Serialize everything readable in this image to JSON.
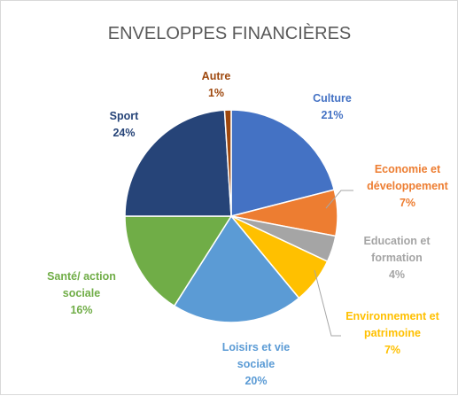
{
  "chart_data": {
    "type": "pie",
    "title": "ENVELOPPES FINANCIÈRES",
    "slices": [
      {
        "category": "Culture",
        "value": 21,
        "value_label": "21%",
        "color": "#4472C4",
        "label_lines": [
          "Culture"
        ]
      },
      {
        "category": "Economie et développement",
        "value": 7,
        "value_label": "7%",
        "color": "#ED7D31",
        "label_lines": [
          "Economie et",
          "développement"
        ]
      },
      {
        "category": "Education et formation",
        "value": 4,
        "value_label": "4%",
        "color": "#A5A5A5",
        "label_lines": [
          "Education et",
          "formation"
        ]
      },
      {
        "category": "Environnement et patrimoine",
        "value": 7,
        "value_label": "7%",
        "color": "#FFC000",
        "label_lines": [
          "Environnement et",
          "patrimoine"
        ]
      },
      {
        "category": "Loisirs et vie sociale",
        "value": 20,
        "value_label": "20%",
        "color": "#5B9BD5",
        "label_lines": [
          "Loisirs et vie",
          "sociale"
        ]
      },
      {
        "category": "Santé/ action sociale",
        "value": 16,
        "value_label": "16%",
        "color": "#70AD47",
        "label_lines": [
          "Santé/ action",
          "sociale"
        ]
      },
      {
        "category": "Sport",
        "value": 24,
        "value_label": "24%",
        "color": "#264478",
        "label_lines": [
          "Sport"
        ]
      },
      {
        "category": "Autre",
        "value": 1,
        "value_label": "1%",
        "color": "#9E480E",
        "label_lines": [
          "Autre"
        ]
      }
    ],
    "start_angle_deg": 0,
    "direction": "clockwise",
    "legend": "none",
    "data_labels": "category and percentage, outside",
    "leader_lines": true
  }
}
